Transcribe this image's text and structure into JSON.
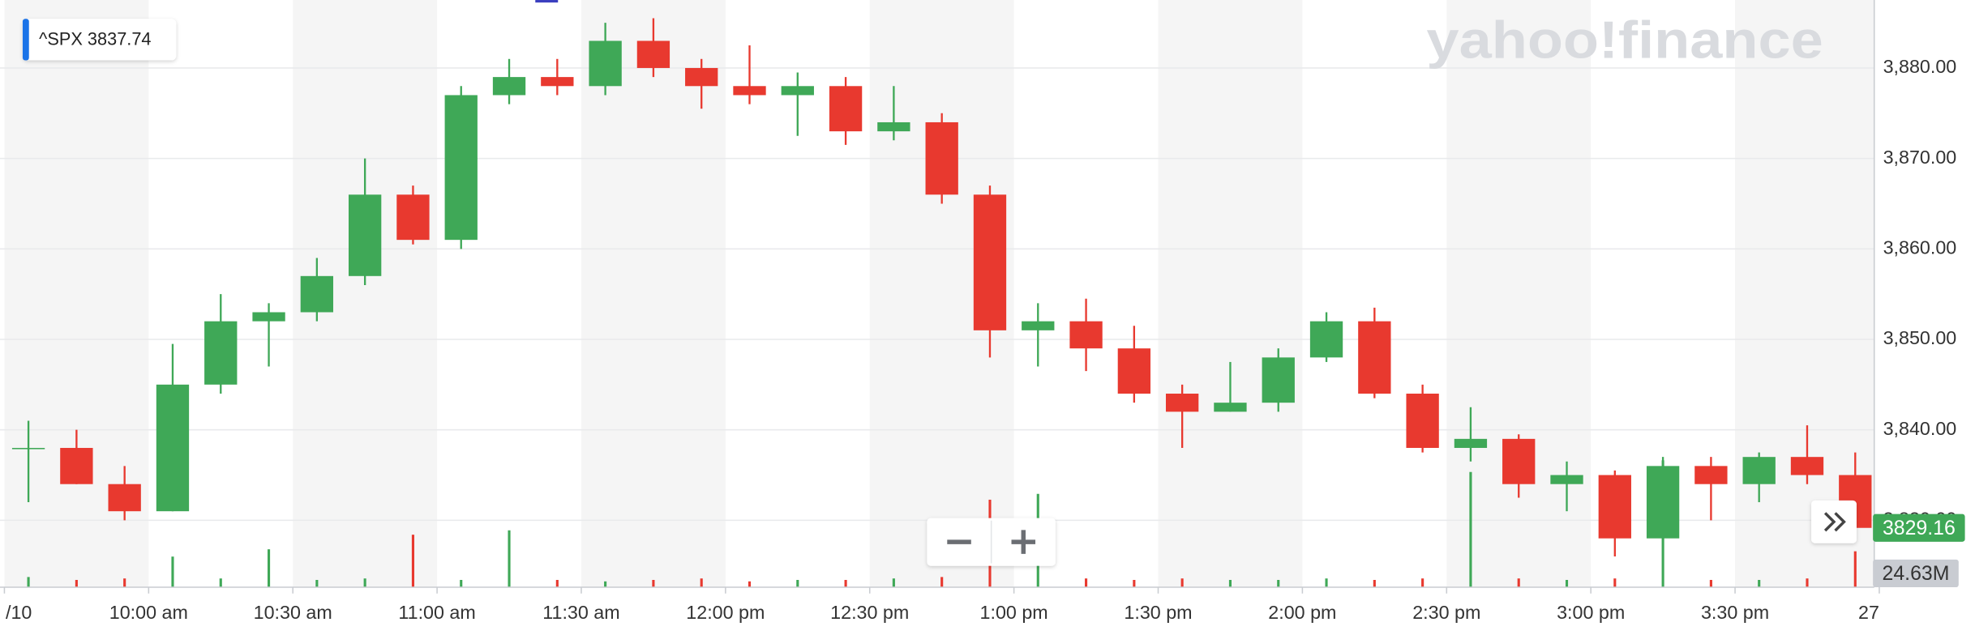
{
  "chart_data": {
    "type": "candlestick",
    "symbol": "^SPX",
    "quote": 3837.74,
    "watermark": "yahoo!finance",
    "x": [
      0,
      10,
      20,
      30,
      40,
      50,
      60,
      70,
      80,
      90,
      100,
      110,
      120,
      130,
      140,
      150,
      160,
      170,
      180,
      190,
      200,
      210,
      220,
      230,
      240,
      250,
      260,
      270,
      280,
      290,
      300,
      310,
      320,
      330,
      340,
      350,
      360,
      370,
      380
    ],
    "candle_minutes": 10,
    "open": [
      3838,
      3838,
      3834,
      3831,
      3845,
      3852,
      3853,
      3857,
      3866,
      3861,
      3877,
      3879,
      3878,
      3883,
      3880,
      3878,
      3877,
      3878,
      3873,
      3874,
      3866,
      3851,
      3852,
      3849,
      3844,
      3842,
      3843,
      3848,
      3852,
      3844,
      3838,
      3839,
      3834,
      3835,
      3828,
      3836,
      3834,
      3837,
      3835
    ],
    "high": [
      3841,
      3840,
      3836,
      3849.5,
      3855,
      3854,
      3859,
      3870,
      3867,
      3878,
      3881,
      3881,
      3885,
      3885.5,
      3881,
      3882.5,
      3879.5,
      3879,
      3878,
      3875,
      3867,
      3854,
      3854.5,
      3851.5,
      3845,
      3847.5,
      3849,
      3853,
      3853.5,
      3845,
      3842.5,
      3839.5,
      3836.5,
      3835.5,
      3837,
      3837,
      3837.5,
      3840.5,
      3837.5
    ],
    "low": [
      3832,
      3834,
      3830,
      3831,
      3844,
      3847,
      3852,
      3856,
      3860.5,
      3860,
      3876,
      3877,
      3877,
      3879,
      3875.5,
      3876,
      3872.5,
      3871.5,
      3872,
      3865,
      3848,
      3847,
      3846.5,
      3843,
      3838,
      3842,
      3842,
      3847.5,
      3843.5,
      3837.5,
      3836.5,
      3832.5,
      3831,
      3826,
      3826,
      3830,
      3832,
      3834,
      3828.5
    ],
    "close": [
      3838,
      3834,
      3831,
      3845,
      3852,
      3853,
      3857,
      3866,
      3861,
      3877,
      3879,
      3878,
      3883,
      3880,
      3878,
      3877,
      3878,
      3873,
      3874,
      3866,
      3851,
      3852,
      3849,
      3844,
      3842,
      3843,
      3848,
      3852,
      3844,
      3838,
      3839,
      3834,
      3835,
      3828,
      3836,
      3834,
      3837,
      3835,
      3829.16
    ],
    "up_color": "#3fa857",
    "down_color": "#e8392f",
    "volume": {
      "values": [
        7,
        5,
        6,
        21,
        6,
        26,
        5,
        6,
        36,
        5,
        39,
        5,
        4,
        5,
        6,
        4,
        5,
        5,
        6,
        7,
        60,
        64,
        6,
        5,
        6,
        5,
        5,
        6,
        5,
        6,
        79,
        6,
        5,
        6,
        87,
        5,
        5,
        6,
        24.63
      ],
      "last_label": "24.63M"
    },
    "y2lim": [
      0,
      400
    ],
    "xlim": [
      0,
      390
    ],
    "xticks": [
      {
        "value": 0,
        "label": "/10"
      },
      {
        "value": 30,
        "label": "10:00 am"
      },
      {
        "value": 60,
        "label": "10:30 am"
      },
      {
        "value": 90,
        "label": "11:00 am"
      },
      {
        "value": 120,
        "label": "11:30 am"
      },
      {
        "value": 150,
        "label": "12:00 pm"
      },
      {
        "value": 180,
        "label": "12:30 pm"
      },
      {
        "value": 210,
        "label": "1:00 pm"
      },
      {
        "value": 240,
        "label": "1:30 pm"
      },
      {
        "value": 270,
        "label": "2:00 pm"
      },
      {
        "value": 300,
        "label": "2:30 pm"
      },
      {
        "value": 330,
        "label": "3:00 pm"
      },
      {
        "value": 360,
        "label": "3:30 pm"
      },
      {
        "value": 390,
        "label": "27"
      }
    ],
    "ylim": [
      3822.6,
      3887.1
    ],
    "yticks": [
      {
        "value": 3830,
        "label": "3,830.00"
      },
      {
        "value": 3840,
        "label": "3,840.00"
      },
      {
        "value": 3850,
        "label": "3,850.00"
      },
      {
        "value": 3860,
        "label": "3,860.00"
      },
      {
        "value": 3870,
        "label": "3,870.00"
      },
      {
        "value": 3880,
        "label": "3,880.00"
      }
    ],
    "grid": true
  }
}
